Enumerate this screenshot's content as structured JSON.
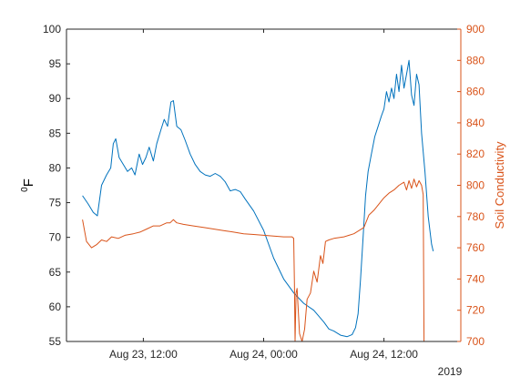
{
  "chart_data": {
    "type": "line",
    "xaxis": {
      "kind": "datetime",
      "range": [
        "2019-08-23T04:20",
        "2019-08-24T19:40"
      ],
      "ticks": [
        {
          "t": "2019-08-23T12:00",
          "label": "Aug 23, 12:00"
        },
        {
          "t": "2019-08-24T00:00",
          "label": "Aug 24, 00:00"
        },
        {
          "t": "2019-08-24T12:00",
          "label": "Aug 24, 12:00"
        }
      ],
      "secondary_label": "2019"
    },
    "yaxis_left": {
      "label_base": "F",
      "label_superscript": "0",
      "ylim": [
        55,
        100
      ],
      "ticks": [
        55,
        60,
        65,
        70,
        75,
        80,
        85,
        90,
        95,
        100
      ],
      "color": "#000000"
    },
    "yaxis_right": {
      "label": "Soil Conductivity",
      "ylim": [
        700,
        900
      ],
      "ticks": [
        700,
        720,
        740,
        760,
        780,
        800,
        820,
        840,
        860,
        880,
        900
      ],
      "color": "#d95319"
    },
    "grid": false,
    "legend": "none",
    "series": [
      {
        "axis": "left",
        "color": "#0072bd",
        "points": [
          [
            "2019-08-23T05:56",
            76.0
          ],
          [
            "2019-08-23T06:30",
            74.8
          ],
          [
            "2019-08-23T07:00",
            73.6
          ],
          [
            "2019-08-23T07:25",
            73.1
          ],
          [
            "2019-08-23T07:50",
            77.5
          ],
          [
            "2019-08-23T08:20",
            79.0
          ],
          [
            "2019-08-23T08:45",
            80.0
          ],
          [
            "2019-08-23T09:00",
            83.5
          ],
          [
            "2019-08-23T09:15",
            84.2
          ],
          [
            "2019-08-23T09:35",
            81.5
          ],
          [
            "2019-08-23T10:00",
            80.5
          ],
          [
            "2019-08-23T10:25",
            79.5
          ],
          [
            "2019-08-23T10:50",
            80.0
          ],
          [
            "2019-08-23T11:10",
            79.0
          ],
          [
            "2019-08-23T11:35",
            82.0
          ],
          [
            "2019-08-23T11:55",
            80.5
          ],
          [
            "2019-08-23T12:15",
            81.5
          ],
          [
            "2019-08-23T12:35",
            83.0
          ],
          [
            "2019-08-23T13:00",
            81.0
          ],
          [
            "2019-08-23T13:20",
            83.5
          ],
          [
            "2019-08-23T13:45",
            85.5
          ],
          [
            "2019-08-23T14:05",
            87.0
          ],
          [
            "2019-08-23T14:25",
            86.0
          ],
          [
            "2019-08-23T14:45",
            89.5
          ],
          [
            "2019-08-23T15:00",
            89.7
          ],
          [
            "2019-08-23T15:20",
            86.0
          ],
          [
            "2019-08-23T15:45",
            85.5
          ],
          [
            "2019-08-23T16:10",
            84.0
          ],
          [
            "2019-08-23T16:40",
            82.0
          ],
          [
            "2019-08-23T17:10",
            80.5
          ],
          [
            "2019-08-23T17:40",
            79.5
          ],
          [
            "2019-08-23T18:10",
            79.0
          ],
          [
            "2019-08-23T18:40",
            78.8
          ],
          [
            "2019-08-23T19:10",
            79.2
          ],
          [
            "2019-08-23T19:40",
            78.8
          ],
          [
            "2019-08-23T20:10",
            78.0
          ],
          [
            "2019-08-23T20:40",
            76.7
          ],
          [
            "2019-08-23T21:10",
            76.9
          ],
          [
            "2019-08-23T21:40",
            76.6
          ],
          [
            "2019-08-23T22:10",
            75.5
          ],
          [
            "2019-08-23T23:00",
            73.8
          ],
          [
            "2019-08-24T00:00",
            71.0
          ],
          [
            "2019-08-24T01:00",
            67.0
          ],
          [
            "2019-08-24T02:00",
            64.0
          ],
          [
            "2019-08-24T03:00",
            62.0
          ],
          [
            "2019-08-24T04:00",
            60.5
          ],
          [
            "2019-08-24T05:00",
            59.5
          ],
          [
            "2019-08-24T06:00",
            57.8
          ],
          [
            "2019-08-24T06:30",
            56.8
          ],
          [
            "2019-08-24T07:00",
            56.5
          ],
          [
            "2019-08-24T07:40",
            55.9
          ],
          [
            "2019-08-24T08:20",
            55.7
          ],
          [
            "2019-08-24T08:50",
            56.0
          ],
          [
            "2019-08-24T09:10",
            57.0
          ],
          [
            "2019-08-24T09:25",
            59.0
          ],
          [
            "2019-08-24T09:40",
            64.0
          ],
          [
            "2019-08-24T09:55",
            70.0
          ],
          [
            "2019-08-24T10:10",
            76.0
          ],
          [
            "2019-08-24T10:25",
            79.5
          ],
          [
            "2019-08-24T10:45",
            82.0
          ],
          [
            "2019-08-24T11:05",
            84.5
          ],
          [
            "2019-08-24T11:25",
            86.0
          ],
          [
            "2019-08-24T11:45",
            87.5
          ],
          [
            "2019-08-24T12:00",
            88.5
          ],
          [
            "2019-08-24T12:15",
            91.0
          ],
          [
            "2019-08-24T12:30",
            89.5
          ],
          [
            "2019-08-24T12:45",
            91.5
          ],
          [
            "2019-08-24T13:00",
            90.0
          ],
          [
            "2019-08-24T13:15",
            93.5
          ],
          [
            "2019-08-24T13:30",
            91.0
          ],
          [
            "2019-08-24T13:45",
            94.8
          ],
          [
            "2019-08-24T14:00",
            91.5
          ],
          [
            "2019-08-24T14:15",
            93.5
          ],
          [
            "2019-08-24T14:30",
            95.5
          ],
          [
            "2019-08-24T14:45",
            90.5
          ],
          [
            "2019-08-24T15:00",
            89.0
          ],
          [
            "2019-08-24T15:15",
            93.5
          ],
          [
            "2019-08-24T15:30",
            92.0
          ],
          [
            "2019-08-24T15:45",
            85.0
          ],
          [
            "2019-08-24T16:05",
            79.5
          ],
          [
            "2019-08-24T16:25",
            73.0
          ],
          [
            "2019-08-24T16:45",
            69.0
          ],
          [
            "2019-08-24T16:55",
            68.0
          ]
        ]
      },
      {
        "axis": "right",
        "color": "#d95319",
        "points": [
          [
            "2019-08-23T05:56",
            778
          ],
          [
            "2019-08-23T06:20",
            764
          ],
          [
            "2019-08-23T06:50",
            760
          ],
          [
            "2019-08-23T07:20",
            762
          ],
          [
            "2019-08-23T07:50",
            765
          ],
          [
            "2019-08-23T08:20",
            764
          ],
          [
            "2019-08-23T08:50",
            767
          ],
          [
            "2019-08-23T09:30",
            766
          ],
          [
            "2019-08-23T10:10",
            768
          ],
          [
            "2019-08-23T11:00",
            769
          ],
          [
            "2019-08-23T11:40",
            770
          ],
          [
            "2019-08-23T12:20",
            772
          ],
          [
            "2019-08-23T13:00",
            774
          ],
          [
            "2019-08-23T13:40",
            774
          ],
          [
            "2019-08-23T14:20",
            776
          ],
          [
            "2019-08-23T14:40",
            776
          ],
          [
            "2019-08-23T15:00",
            778
          ],
          [
            "2019-08-23T15:20",
            776
          ],
          [
            "2019-08-23T16:00",
            775
          ],
          [
            "2019-08-23T17:00",
            774
          ],
          [
            "2019-08-23T18:00",
            773
          ],
          [
            "2019-08-23T19:00",
            772
          ],
          [
            "2019-08-23T20:00",
            771
          ],
          [
            "2019-08-23T21:00",
            770
          ],
          [
            "2019-08-23T22:00",
            769
          ],
          [
            "2019-08-23T23:00",
            768.5
          ],
          [
            "2019-08-24T00:00",
            768
          ],
          [
            "2019-08-24T01:00",
            767.5
          ],
          [
            "2019-08-24T02:00",
            767
          ],
          [
            "2019-08-24T02:50",
            767
          ],
          [
            "2019-08-24T03:00",
            766
          ],
          [
            "2019-08-24T03:04",
            737
          ],
          [
            "2019-08-24T03:08",
            700
          ],
          [
            "2019-08-24T03:14",
            731
          ],
          [
            "2019-08-24T03:20",
            734
          ],
          [
            "2019-08-24T03:35",
            705
          ],
          [
            "2019-08-24T03:50",
            700
          ],
          [
            "2019-08-24T04:05",
            708
          ],
          [
            "2019-08-24T04:20",
            727
          ],
          [
            "2019-08-24T04:40",
            731
          ],
          [
            "2019-08-24T05:00",
            745
          ],
          [
            "2019-08-24T05:20",
            738
          ],
          [
            "2019-08-24T05:40",
            755
          ],
          [
            "2019-08-24T05:55",
            750
          ],
          [
            "2019-08-24T06:10",
            764
          ],
          [
            "2019-08-24T06:30",
            765
          ],
          [
            "2019-08-24T07:00",
            766
          ],
          [
            "2019-08-24T08:00",
            767
          ],
          [
            "2019-08-24T09:00",
            769
          ],
          [
            "2019-08-24T10:00",
            773
          ],
          [
            "2019-08-24T10:30",
            781
          ],
          [
            "2019-08-24T11:00",
            784
          ],
          [
            "2019-08-24T11:30",
            788
          ],
          [
            "2019-08-24T12:00",
            792
          ],
          [
            "2019-08-24T12:30",
            795
          ],
          [
            "2019-08-24T13:00",
            797
          ],
          [
            "2019-08-24T13:30",
            800
          ],
          [
            "2019-08-24T14:00",
            802
          ],
          [
            "2019-08-24T14:15",
            797
          ],
          [
            "2019-08-24T14:30",
            803
          ],
          [
            "2019-08-24T14:45",
            798
          ],
          [
            "2019-08-24T15:00",
            804
          ],
          [
            "2019-08-24T15:15",
            799
          ],
          [
            "2019-08-24T15:30",
            803
          ],
          [
            "2019-08-24T15:45",
            800
          ],
          [
            "2019-08-24T15:55",
            794
          ],
          [
            "2019-08-24T16:00",
            700
          ]
        ]
      }
    ]
  }
}
